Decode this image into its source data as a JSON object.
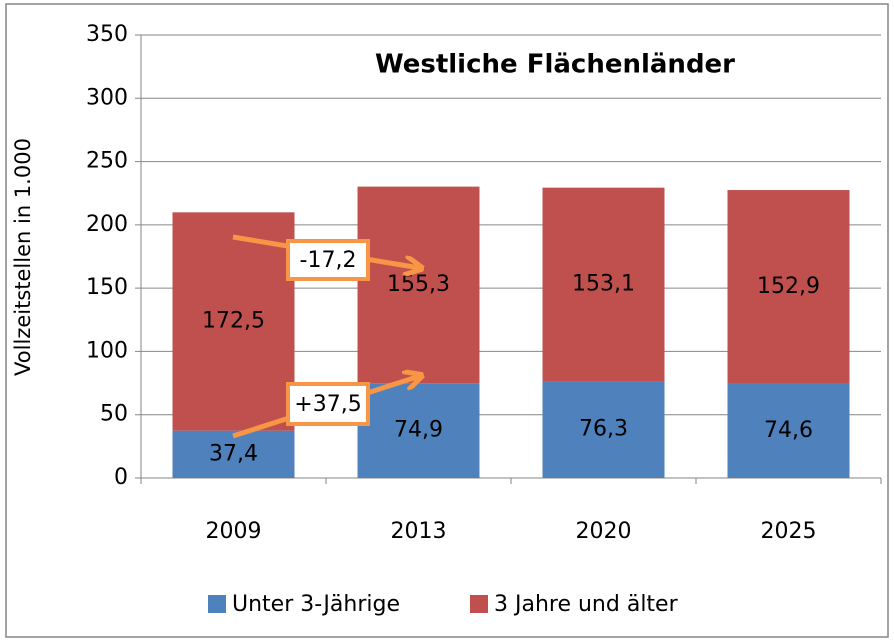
{
  "chart_data": {
    "type": "stacked_bar",
    "title": "Westliche Flächenländer",
    "y_label": "Vollzeitstellen in 1.000",
    "categories": [
      "2009",
      "2013",
      "2020",
      "2025"
    ],
    "series": [
      {
        "name": "Unter 3-Jährige",
        "color": "#4f81bd",
        "values": [
          37.4,
          74.9,
          76.3,
          74.6
        ],
        "value_labels": [
          "37,4",
          "74,9",
          "76,3",
          "74,6"
        ]
      },
      {
        "name": "3 Jahre und älter",
        "color": "#c0504d",
        "values": [
          172.5,
          155.3,
          153.1,
          152.9
        ],
        "value_labels": [
          "172,5",
          "155,3",
          "153,1",
          "152,9"
        ]
      }
    ],
    "ylim": [
      0,
      350
    ],
    "yticks": [
      0,
      50,
      100,
      150,
      200,
      250,
      300,
      350
    ],
    "grid": true,
    "legend": "bottom",
    "annotations": [
      {
        "text": "-17,2"
      },
      {
        "text": "+37,5"
      }
    ]
  }
}
